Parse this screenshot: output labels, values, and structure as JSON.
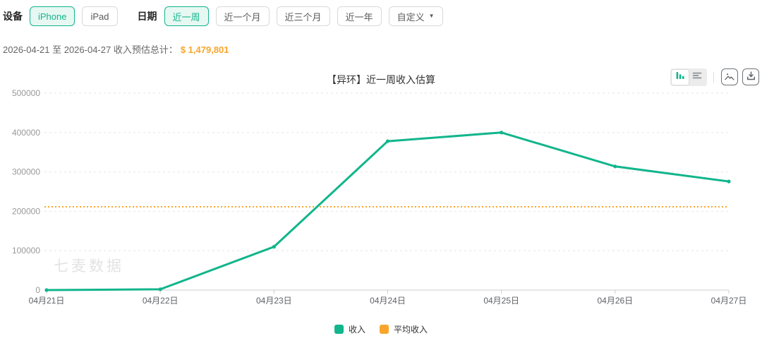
{
  "filters": {
    "device": {
      "label": "设备",
      "options": [
        {
          "label": "iPhone",
          "selected": true
        },
        {
          "label": "iPad",
          "selected": false
        }
      ]
    },
    "date": {
      "label": "日期",
      "options": [
        {
          "label": "近一周",
          "selected": true
        },
        {
          "label": "近一个月",
          "selected": false
        },
        {
          "label": "近三个月",
          "selected": false
        },
        {
          "label": "近一年",
          "selected": false
        }
      ],
      "custom": {
        "label": "自定义",
        "caret": "▼"
      }
    }
  },
  "summary": {
    "prefix": "2026-04-21 至 2026-04-27 收入预估总计：",
    "amount": "$ 1,479,801"
  },
  "toolbar": {
    "chart_toggle_icons": [
      "bar-chart-icon",
      "data-view-icon"
    ],
    "button_icons": [
      "image-icon",
      "download-icon"
    ]
  },
  "watermark": "七麦数据",
  "colors": {
    "primary_green": "#12b58c",
    "accent_orange": "#f9a52b",
    "selected_button_bg": "#e7f8f2",
    "axis_line": "#cccccc",
    "grid_line": "#e6e6e6",
    "y_label": "#999999",
    "x_label": "#606266"
  },
  "chart_data": {
    "type": "line",
    "title": "【异环】近一周收入估算",
    "categories": [
      "04月21日",
      "04月22日",
      "04月23日",
      "04月24日",
      "04月25日",
      "04月26日",
      "04月27日"
    ],
    "series": [
      {
        "name": "收入",
        "type": "line",
        "color": "#12b58c",
        "values": [
          0,
          2000,
          110000,
          378000,
          400000,
          314000,
          275801
        ]
      },
      {
        "name": "平均收入",
        "type": "horizontal-dotted-line",
        "color": "#f9a52b",
        "value": 211400
      }
    ],
    "total_estimate": "$ 1,479,801",
    "ylim": [
      0,
      500000
    ],
    "yticks": [
      0,
      100000,
      200000,
      300000,
      400000,
      500000
    ],
    "grid": "dashed-horizontal",
    "legend_position": "bottom",
    "xlabel": "",
    "ylabel": ""
  }
}
